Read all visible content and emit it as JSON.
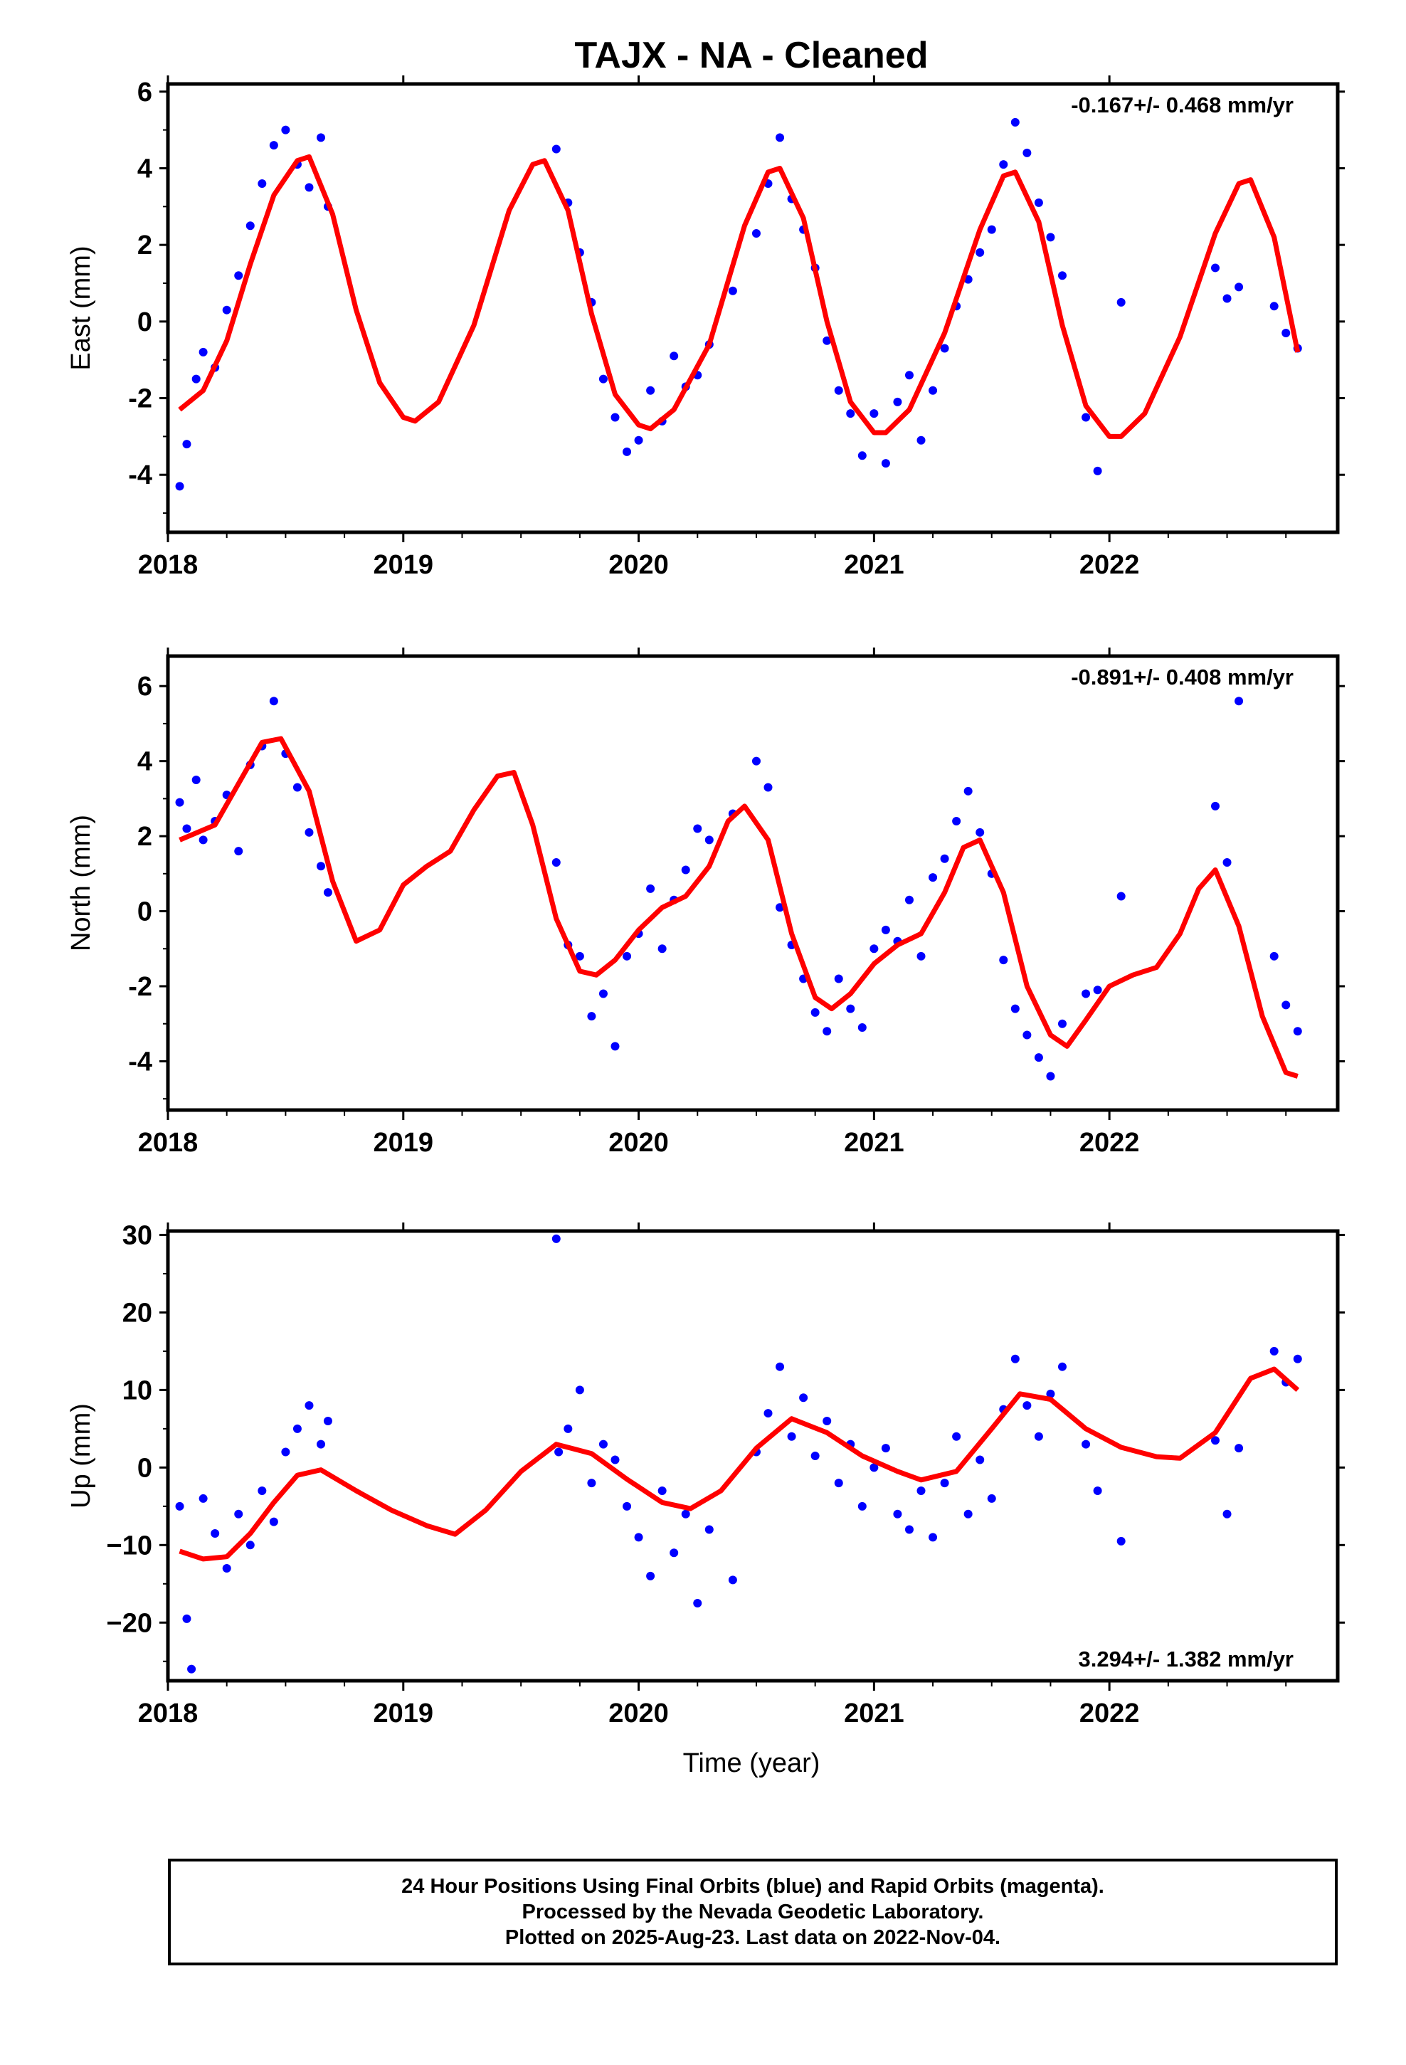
{
  "chart_data": {
    "type": "scatter",
    "title": "TAJX  - NA - Cleaned",
    "xlabel": "Time (year)",
    "x_tick_labels": [
      "2018",
      "2019",
      "2020",
      "2021",
      "2022"
    ],
    "xlim": [
      2018,
      2022.97
    ],
    "series_colors": {
      "final_orbits": "#0000ff",
      "model_fit": "#ff0000"
    },
    "panels": [
      {
        "name": "east",
        "ylabel": "East (mm)",
        "ylim": [
          -5.5,
          6.2
        ],
        "y_ticks": [
          -4,
          -2,
          0,
          2,
          4,
          6
        ],
        "y_tick_labels": [
          "-4",
          "-2",
          "0",
          "2",
          "4",
          "6"
        ],
        "rate_label": "-0.167+/- 0.468 mm/yr",
        "rate_position": "top-right",
        "model": {
          "x": [
            2018.05,
            2018.15,
            2018.25,
            2018.35,
            2018.45,
            2018.55,
            2018.6,
            2018.7,
            2018.8,
            2018.9,
            2019.0,
            2019.05,
            2019.15,
            2019.3,
            2019.45,
            2019.55,
            2019.6,
            2019.7,
            2019.8,
            2019.9,
            2020.0,
            2020.05,
            2020.15,
            2020.3,
            2020.45,
            2020.55,
            2020.6,
            2020.7,
            2020.8,
            2020.9,
            2021.0,
            2021.05,
            2021.15,
            2021.3,
            2021.45,
            2021.55,
            2021.6,
            2021.7,
            2021.8,
            2021.9,
            2022.0,
            2022.05,
            2022.15,
            2022.3,
            2022.45,
            2022.55,
            2022.6,
            2022.7,
            2022.8
          ],
          "y": [
            -2.3,
            -1.8,
            -0.5,
            1.5,
            3.3,
            4.2,
            4.3,
            2.8,
            0.3,
            -1.6,
            -2.5,
            -2.6,
            -2.1,
            -0.1,
            2.9,
            4.1,
            4.2,
            2.9,
            0.2,
            -1.9,
            -2.7,
            -2.8,
            -2.3,
            -0.6,
            2.5,
            3.9,
            4.0,
            2.7,
            0.0,
            -2.1,
            -2.9,
            -2.9,
            -2.3,
            -0.3,
            2.4,
            3.8,
            3.9,
            2.6,
            -0.1,
            -2.2,
            -3.0,
            -3.0,
            -2.4,
            -0.4,
            2.3,
            3.6,
            3.7,
            2.2,
            -0.8
          ]
        },
        "points_x": [
          2018.05,
          2018.08,
          2018.12,
          2018.15,
          2018.2,
          2018.25,
          2018.3,
          2018.35,
          2018.4,
          2018.45,
          2018.5,
          2018.55,
          2018.6,
          2018.65,
          2018.68,
          2019.65,
          2019.7,
          2019.75,
          2019.8,
          2019.85,
          2019.9,
          2019.95,
          2020.0,
          2020.05,
          2020.1,
          2020.15,
          2020.2,
          2020.25,
          2020.3,
          2020.4,
          2020.5,
          2020.55,
          2020.6,
          2020.65,
          2020.7,
          2020.75,
          2020.8,
          2020.85,
          2020.9,
          2020.95,
          2021.0,
          2021.05,
          2021.1,
          2021.15,
          2021.2,
          2021.25,
          2021.3,
          2021.35,
          2021.4,
          2021.45,
          2021.5,
          2021.55,
          2021.6,
          2021.65,
          2021.7,
          2021.75,
          2021.8,
          2021.9,
          2021.95,
          2022.05,
          2022.45,
          2022.5,
          2022.55,
          2022.7,
          2022.75,
          2022.8
        ],
        "points_y": [
          -4.3,
          -3.2,
          -1.5,
          -0.8,
          -1.2,
          0.3,
          1.2,
          2.5,
          3.6,
          4.6,
          5.0,
          4.1,
          3.5,
          4.8,
          3.0,
          4.5,
          3.1,
          1.8,
          0.5,
          -1.5,
          -2.5,
          -3.4,
          -3.1,
          -1.8,
          -2.6,
          -0.9,
          -1.7,
          -1.4,
          -0.6,
          0.8,
          2.3,
          3.6,
          4.8,
          3.2,
          2.4,
          1.4,
          -0.5,
          -1.8,
          -2.4,
          -3.5,
          -2.4,
          -3.7,
          -2.1,
          -1.4,
          -3.1,
          -1.8,
          -0.7,
          0.4,
          1.1,
          1.8,
          2.4,
          4.1,
          5.2,
          4.4,
          3.1,
          2.2,
          1.2,
          -2.5,
          -3.9,
          0.5,
          1.4,
          0.6,
          0.9,
          0.4,
          -0.3,
          -0.7
        ]
      },
      {
        "name": "north",
        "ylabel": "North (mm)",
        "ylim": [
          -5.3,
          6.8
        ],
        "y_ticks": [
          -4,
          -2,
          0,
          2,
          4,
          6
        ],
        "y_tick_labels": [
          "-4",
          "-2",
          "0",
          "2",
          "4",
          "6"
        ],
        "rate_label": "-0.891+/- 0.408 mm/yr",
        "rate_position": "top-right",
        "model": {
          "x": [
            2018.05,
            2018.2,
            2018.3,
            2018.4,
            2018.48,
            2018.6,
            2018.7,
            2018.8,
            2018.9,
            2019.0,
            2019.1,
            2019.2,
            2019.3,
            2019.4,
            2019.47,
            2019.55,
            2019.65,
            2019.75,
            2019.82,
            2019.9,
            2020.0,
            2020.1,
            2020.2,
            2020.3,
            2020.38,
            2020.45,
            2020.55,
            2020.65,
            2020.75,
            2020.82,
            2020.9,
            2021.0,
            2021.1,
            2021.2,
            2021.3,
            2021.38,
            2021.45,
            2021.55,
            2021.65,
            2021.75,
            2021.82,
            2021.9,
            2022.0,
            2022.1,
            2022.2,
            2022.3,
            2022.38,
            2022.45,
            2022.55,
            2022.65,
            2022.75,
            2022.8
          ],
          "y": [
            1.9,
            2.3,
            3.4,
            4.5,
            4.6,
            3.2,
            0.8,
            -0.8,
            -0.5,
            0.7,
            1.2,
            1.6,
            2.7,
            3.6,
            3.7,
            2.3,
            -0.2,
            -1.6,
            -1.7,
            -1.3,
            -0.5,
            0.1,
            0.4,
            1.2,
            2.4,
            2.8,
            1.9,
            -0.6,
            -2.3,
            -2.6,
            -2.2,
            -1.4,
            -0.9,
            -0.6,
            0.5,
            1.7,
            1.9,
            0.5,
            -2.0,
            -3.3,
            -3.6,
            -2.9,
            -2.0,
            -1.7,
            -1.5,
            -0.6,
            0.6,
            1.1,
            -0.4,
            -2.8,
            -4.3,
            -4.4
          ]
        },
        "points_x": [
          2018.05,
          2018.08,
          2018.12,
          2018.15,
          2018.2,
          2018.25,
          2018.3,
          2018.35,
          2018.4,
          2018.45,
          2018.5,
          2018.55,
          2018.6,
          2018.65,
          2018.68,
          2019.65,
          2019.7,
          2019.75,
          2019.8,
          2019.85,
          2019.9,
          2019.95,
          2020.0,
          2020.05,
          2020.1,
          2020.15,
          2020.2,
          2020.25,
          2020.3,
          2020.4,
          2020.5,
          2020.55,
          2020.6,
          2020.65,
          2020.7,
          2020.75,
          2020.8,
          2020.85,
          2020.9,
          2020.95,
          2021.0,
          2021.05,
          2021.1,
          2021.15,
          2021.2,
          2021.25,
          2021.3,
          2021.35,
          2021.4,
          2021.45,
          2021.5,
          2021.55,
          2021.6,
          2021.65,
          2021.7,
          2021.75,
          2021.8,
          2021.9,
          2021.95,
          2022.05,
          2022.45,
          2022.5,
          2022.55,
          2022.7,
          2022.75,
          2022.8
        ],
        "points_y": [
          2.9,
          2.2,
          3.5,
          1.9,
          2.4,
          3.1,
          1.6,
          3.9,
          4.4,
          5.6,
          4.2,
          3.3,
          2.1,
          1.2,
          0.5,
          1.3,
          -0.9,
          -1.2,
          -2.8,
          -2.2,
          -3.6,
          -1.2,
          -0.6,
          0.6,
          -1.0,
          0.3,
          1.1,
          2.2,
          1.9,
          2.6,
          4.0,
          3.3,
          0.1,
          -0.9,
          -1.8,
          -2.7,
          -3.2,
          -1.8,
          -2.6,
          -3.1,
          -1.0,
          -0.5,
          -0.8,
          0.3,
          -1.2,
          0.9,
          1.4,
          2.4,
          3.2,
          2.1,
          1.0,
          -1.3,
          -2.6,
          -3.3,
          -3.9,
          -4.4,
          -3.0,
          -2.2,
          -2.1,
          0.4,
          2.8,
          1.3,
          5.6,
          -1.2,
          -2.5,
          -3.2
        ]
      },
      {
        "name": "up",
        "ylabel": "Up (mm)",
        "ylim": [
          -27.5,
          30.5
        ],
        "y_ticks": [
          -20,
          -10,
          0,
          10,
          20,
          30
        ],
        "y_tick_labels": [
          "−20",
          "−10",
          "0",
          "10",
          "20",
          "30"
        ],
        "rate_label": "3.294+/- 1.382 mm/yr",
        "rate_position": "bottom-right",
        "model": {
          "x": [
            2018.05,
            2018.15,
            2018.25,
            2018.35,
            2018.45,
            2018.55,
            2018.65,
            2018.8,
            2018.95,
            2019.1,
            2019.22,
            2019.35,
            2019.5,
            2019.65,
            2019.8,
            2019.95,
            2020.1,
            2020.22,
            2020.35,
            2020.5,
            2020.65,
            2020.8,
            2020.95,
            2021.1,
            2021.2,
            2021.35,
            2021.5,
            2021.62,
            2021.75,
            2021.9,
            2022.05,
            2022.2,
            2022.3,
            2022.45,
            2022.6,
            2022.7,
            2022.8
          ],
          "y": [
            -10.8,
            -11.8,
            -11.5,
            -8.5,
            -4.5,
            -1.0,
            -0.3,
            -3.0,
            -5.5,
            -7.5,
            -8.6,
            -5.5,
            -0.5,
            3.0,
            1.8,
            -1.5,
            -4.5,
            -5.3,
            -3.0,
            2.5,
            6.3,
            4.5,
            1.5,
            -0.5,
            -1.6,
            -0.5,
            5.0,
            9.5,
            8.8,
            5.0,
            2.6,
            1.4,
            1.2,
            4.5,
            11.5,
            12.7,
            10.0
          ]
        },
        "points_x": [
          2018.05,
          2018.08,
          2018.1,
          2018.15,
          2018.2,
          2018.25,
          2018.3,
          2018.35,
          2018.4,
          2018.45,
          2018.5,
          2018.55,
          2018.6,
          2018.65,
          2018.68,
          2019.65,
          2019.66,
          2019.7,
          2019.75,
          2019.8,
          2019.85,
          2019.9,
          2019.95,
          2020.0,
          2020.05,
          2020.1,
          2020.15,
          2020.2,
          2020.25,
          2020.3,
          2020.4,
          2020.5,
          2020.55,
          2020.6,
          2020.65,
          2020.7,
          2020.75,
          2020.8,
          2020.85,
          2020.9,
          2020.95,
          2021.0,
          2021.05,
          2021.1,
          2021.15,
          2021.2,
          2021.25,
          2021.3,
          2021.35,
          2021.4,
          2021.45,
          2021.5,
          2021.55,
          2021.6,
          2021.65,
          2021.7,
          2021.75,
          2021.8,
          2021.9,
          2021.95,
          2022.05,
          2022.45,
          2022.5,
          2022.55,
          2022.7,
          2022.75,
          2022.8
        ],
        "points_y": [
          -5.0,
          -19.5,
          -26.0,
          -4.0,
          -8.5,
          -13.0,
          -6.0,
          -10.0,
          -3.0,
          -7.0,
          2.0,
          5.0,
          8.0,
          3.0,
          6.0,
          29.5,
          2.0,
          5.0,
          10.0,
          -2.0,
          3.0,
          1.0,
          -5.0,
          -9.0,
          -14.0,
          -3.0,
          -11.0,
          -6.0,
          -17.5,
          -8.0,
          -14.5,
          2.0,
          7.0,
          13.0,
          4.0,
          9.0,
          1.5,
          6.0,
          -2.0,
          3.0,
          -5.0,
          0.0,
          2.5,
          -6.0,
          -8.0,
          -3.0,
          -9.0,
          -2.0,
          4.0,
          -6.0,
          1.0,
          -4.0,
          7.5,
          14.0,
          8.0,
          4.0,
          9.5,
          13.0,
          3.0,
          -3.0,
          -9.5,
          3.5,
          -6.0,
          2.5,
          15.0,
          11.0,
          14.0
        ]
      }
    ]
  },
  "footer": {
    "line1": "24 Hour Positions Using Final Orbits (blue) and Rapid Orbits (magenta).",
    "line2": "Processed by the Nevada Geodetic Laboratory.",
    "line3": "Plotted on 2025-Aug-23. Last data on 2022-Nov-04."
  }
}
